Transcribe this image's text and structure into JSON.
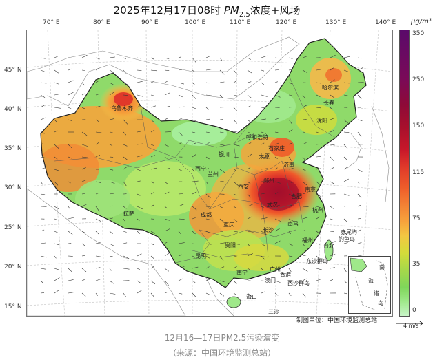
{
  "title": {
    "prefix": "2025年12月17日08时 ",
    "pm": "PM",
    "sub": "2.5",
    "suffix": "浓度+风场"
  },
  "lon_labels": [
    "70° E",
    "80° E",
    "90° E",
    "100° E",
    "110° E",
    "120° E",
    "130° E",
    "140° E"
  ],
  "lat_labels": [
    "45° N",
    "40° N",
    "35° N",
    "30° N",
    "25° N",
    "20° N",
    "15° N"
  ],
  "colorbar": {
    "unit": "μg/m³",
    "ticks": [
      "350",
      "250",
      "150",
      "115",
      "75",
      "35",
      "0"
    ]
  },
  "cities": [
    {
      "name": "哈尔滨"
    },
    {
      "name": "长春"
    },
    {
      "name": "沈阳"
    },
    {
      "name": "呼和浩特"
    },
    {
      "name": "太原"
    },
    {
      "name": "石家庄"
    },
    {
      "name": "济南"
    },
    {
      "name": "银川"
    },
    {
      "name": "西宁"
    },
    {
      "name": "兰州"
    },
    {
      "name": "西安"
    },
    {
      "name": "郑州"
    },
    {
      "name": "武汉"
    },
    {
      "name": "合肥"
    },
    {
      "name": "南京"
    },
    {
      "name": "杭州"
    },
    {
      "name": "成都"
    },
    {
      "name": "重庆"
    },
    {
      "name": "长沙"
    },
    {
      "name": "南昌"
    },
    {
      "name": "贵阳"
    },
    {
      "name": "昆明"
    },
    {
      "name": "南宁"
    },
    {
      "name": "广州"
    },
    {
      "name": "福州"
    },
    {
      "name": "台北"
    },
    {
      "name": "拉萨"
    },
    {
      "name": "乌鲁木齐"
    },
    {
      "name": "海口"
    },
    {
      "name": "香港"
    },
    {
      "name": "澳门"
    },
    {
      "name": "赤尾屿"
    },
    {
      "name": "钓鱼岛"
    },
    {
      "name": "东沙群岛"
    },
    {
      "name": "西沙群岛"
    },
    {
      "name": "三沙"
    }
  ],
  "inset_labels": {
    "a": "南",
    "b": "海",
    "c": "诸",
    "d": "岛"
  },
  "credit": "制图单位：中国环境监测总站",
  "wind_legend": "4 m/s",
  "caption_line1": "12月16—17日PM2.5污染演变",
  "caption_line2": "（来源：中国环境监测总站）"
}
